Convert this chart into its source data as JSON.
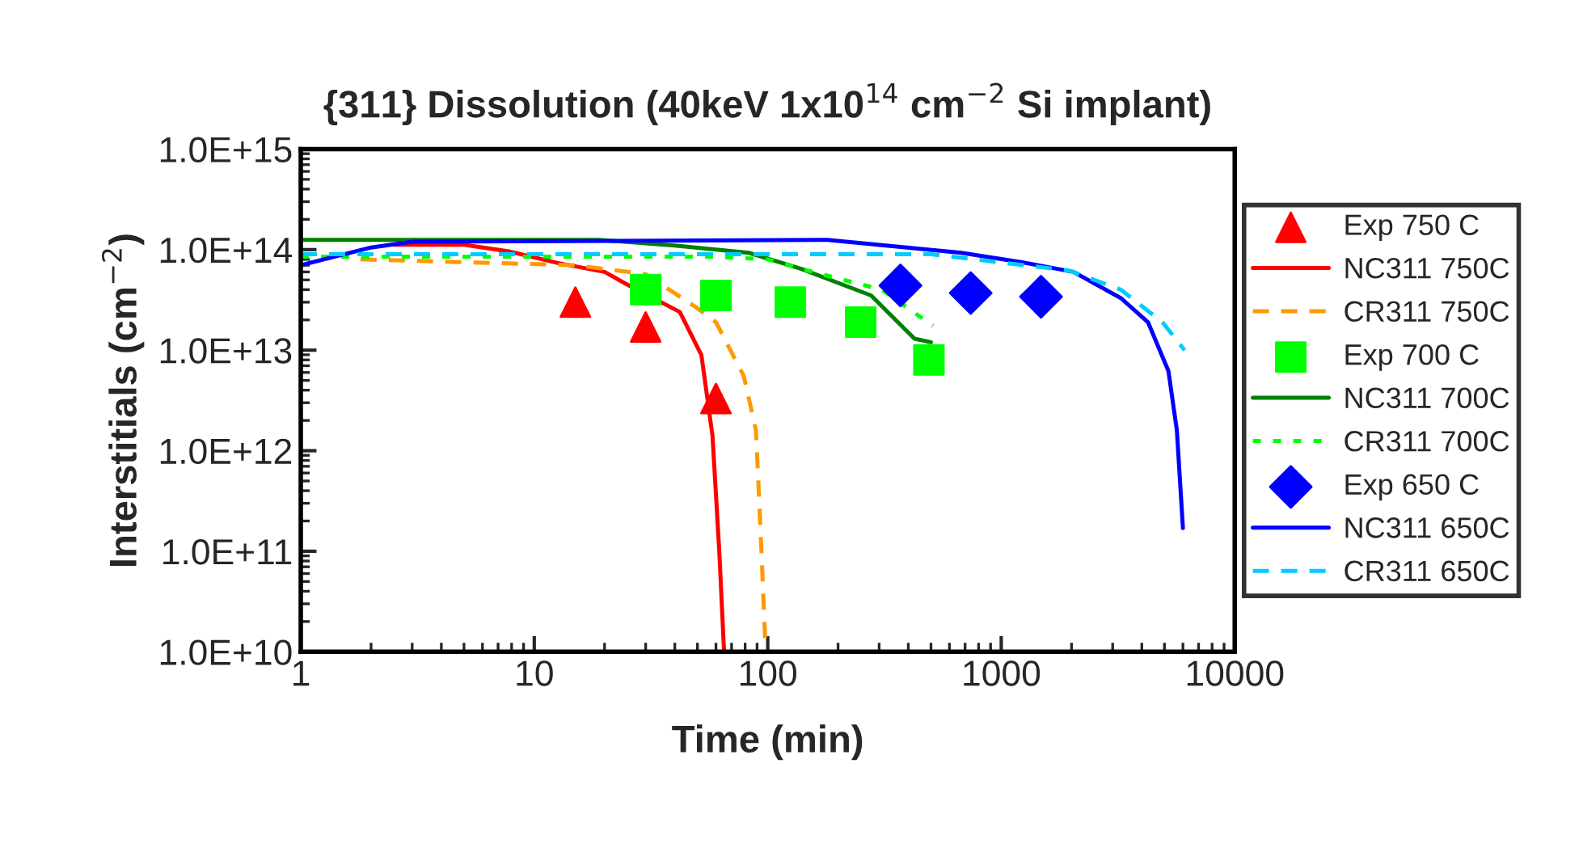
{
  "chart_data": {
    "type": "line",
    "title": "{311} Dissolution (40keV 1x10$^{14}$ cm$^{−2}$ Si implant)",
    "xlabel": "Time (min)",
    "ylabel": "Interstitials (cm$^{−2}$)",
    "log": "xy",
    "grid": false,
    "legend": "right",
    "xlim": [
      1,
      10000
    ],
    "xticks": [
      1,
      10,
      100,
      1000,
      10000
    ],
    "ylim": [
      10000000000.0,
      1000000000000000.0
    ],
    "yticks": [
      {
        "value": 10000000000.0,
        "label": "1.0E+10"
      },
      {
        "value": 100000000000.0,
        "label": "1.0E+11"
      },
      {
        "value": 1000000000000.0,
        "label": "1.0E+12"
      },
      {
        "value": 10000000000000.0,
        "label": "1.0E+13"
      },
      {
        "value": 100000000000000.0,
        "label": "1.0E+14"
      },
      {
        "value": 1000000000000000.0,
        "label": "1.0E+15"
      }
    ],
    "series": [
      {
        "name": "Exp 750 C",
        "type": "scatter",
        "marker": "triangle",
        "color": "#ff0000",
        "x": [
          15,
          30,
          60
        ],
        "values": [
          30000000000000.0,
          17000000000000.0,
          3300000000000.0
        ]
      },
      {
        "name": "NC311 750C",
        "line_style": "solid",
        "color": "#ff0000",
        "x": [
          2.5,
          5,
          7.8,
          12.5,
          20,
          25,
          42,
          52,
          58,
          62,
          65
        ],
        "values": [
          112000000000000.0,
          112000000000000.0,
          96000000000000.0,
          74000000000000.0,
          60000000000000.0,
          45000000000000.0,
          24000000000000.0,
          8900000000000.0,
          1400000000000.0,
          100000000000.0,
          10000000000.0
        ]
      },
      {
        "name": "CR311 750C",
        "line_style": "dashed",
        "color": "#ff9900",
        "x": [
          1.8,
          15,
          30,
          49,
          60,
          79,
          89,
          94,
          96,
          98
        ],
        "values": [
          80000000000000.0,
          70000000000000.0,
          57000000000000.0,
          27000000000000.0,
          19000000000000.0,
          5500000000000.0,
          1600000000000.0,
          100000000000.0,
          30000000000.0,
          10000000000.0
        ]
      },
      {
        "name": "Exp 700 C",
        "type": "scatter",
        "marker": "square",
        "color": "#00ff00",
        "x": [
          30,
          60,
          125,
          250,
          490
        ],
        "values": [
          40000000000000.0,
          35000000000000.0,
          30000000000000.0,
          19000000000000.0,
          8000000000000.0
        ]
      },
      {
        "name": "NC311 700C",
        "line_style": "solid",
        "color": "#008000",
        "x": [
          1,
          19,
          40,
          83,
          140,
          277,
          425,
          500
        ],
        "values": [
          125000000000000.0,
          125000000000000.0,
          110000000000000.0,
          93000000000000.0,
          64000000000000.0,
          35000000000000.0,
          13000000000000.0,
          12000000000000.0
        ]
      },
      {
        "name": "CR311 700C",
        "line_style": "dotted",
        "color": "#00ff00",
        "x": [
          1,
          60,
          100,
          140,
          307,
          510
        ],
        "values": [
          85000000000000.0,
          85000000000000.0,
          80000000000000.0,
          64000000000000.0,
          40000000000000.0,
          17500000000000.0
        ]
      },
      {
        "name": "Exp 650 C",
        "type": "scatter",
        "marker": "diamond",
        "color": "#0000ff",
        "x": [
          370,
          740,
          1480
        ],
        "values": [
          44000000000000.0,
          37000000000000.0,
          34000000000000.0
        ]
      },
      {
        "name": "NC311 650C",
        "line_style": "solid",
        "color": "#0000ff",
        "x": [
          1,
          2,
          3,
          180,
          675,
          1260,
          2040,
          3250,
          4250,
          5200,
          5650,
          6000
        ],
        "values": [
          70000000000000.0,
          105000000000000.0,
          120000000000000.0,
          125000000000000.0,
          93000000000000.0,
          74000000000000.0,
          60000000000000.0,
          33000000000000.0,
          19000000000000.0,
          6200000000000.0,
          1600000000000.0,
          170000000000.0
        ]
      },
      {
        "name": "CR311 650C",
        "line_style": "dashed",
        "color": "#00ccff",
        "x": [
          1,
          500,
          1950,
          3250,
          4900,
          6100
        ],
        "values": [
          90000000000000.0,
          90000000000000.0,
          62000000000000.0,
          40000000000000.0,
          19000000000000.0,
          10000000000000.0
        ]
      }
    ]
  }
}
